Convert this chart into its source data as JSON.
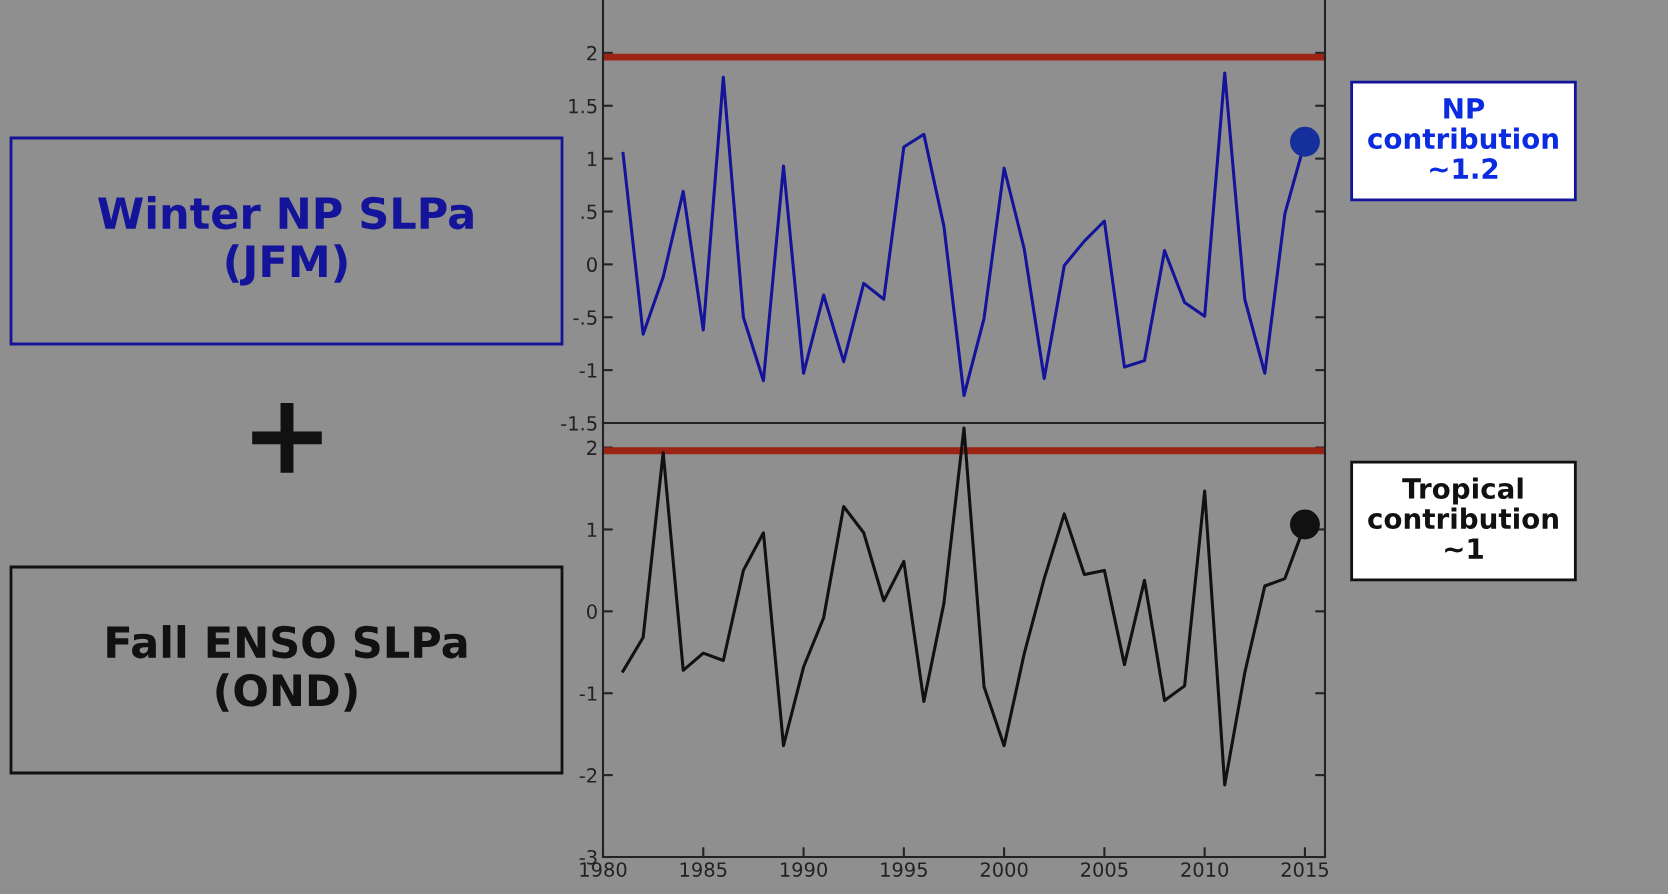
{
  "chart_data": [
    {
      "type": "line",
      "x": [
        1981,
        1982,
        1983,
        1984,
        1985,
        1986,
        1987,
        1988,
        1989,
        1990,
        1991,
        1992,
        1993,
        1994,
        1995,
        1996,
        1997,
        1998,
        1999,
        2000,
        2001,
        2002,
        2003,
        2004,
        2005,
        2006,
        2007,
        2008,
        2009,
        2010,
        2011,
        2012,
        2013,
        2014,
        2015
      ],
      "series": [
        {
          "color": "#14149a",
          "values": [
            1.05,
            -0.66,
            -0.12,
            0.69,
            -0.62,
            1.77,
            -0.5,
            -1.1,
            0.93,
            -1.03,
            -0.29,
            -0.92,
            -0.18,
            -0.33,
            1.11,
            1.23,
            0.36,
            -1.24,
            -0.51,
            0.91,
            0.15,
            -1.08,
            -0.01,
            0.22,
            0.41,
            -0.97,
            -0.91,
            0.13,
            -0.36,
            -0.49,
            1.81,
            -0.33,
            -1.03,
            0.48,
            1.16
          ]
        },
        {
          "type": "scatter",
          "color": "#15309a",
          "x": [
            2015
          ],
          "values": [
            1.16
          ],
          "marker": "circle"
        }
      ],
      "xlim": [
        1980,
        2016
      ],
      "ylim": [
        -1.5,
        2.5
      ],
      "yticks": [
        {
          "value": -1.5,
          "label": "-1.5"
        },
        -1,
        {
          "value": -0.5,
          "label": "-.5"
        },
        0,
        {
          "value": 0.5,
          "label": ".5"
        },
        1,
        1.5,
        2
      ],
      "tick_labels": "y",
      "grid": false,
      "legend": false,
      "ref_lines": [
        {
          "axis": "y",
          "value": 1.96,
          "color": "#9b2414"
        }
      ],
      "annotations": [
        "Winter NP SLPa\n(JFM)",
        "NP\ncontribution\n~1.2"
      ]
    },
    {
      "type": "line",
      "x": [
        1981,
        1982,
        1983,
        1984,
        1985,
        1986,
        1987,
        1988,
        1989,
        1990,
        1991,
        1992,
        1993,
        1994,
        1995,
        1996,
        1997,
        1998,
        1999,
        2000,
        2001,
        2002,
        2003,
        2004,
        2005,
        2006,
        2007,
        2008,
        2009,
        2010,
        2011,
        2012,
        2013,
        2014,
        2015
      ],
      "series": [
        {
          "color": "#111111",
          "values": [
            -0.73,
            -0.32,
            1.94,
            -0.72,
            -0.51,
            -0.6,
            0.5,
            0.96,
            -1.64,
            -0.68,
            -0.08,
            1.28,
            0.96,
            0.13,
            0.61,
            -1.1,
            0.1,
            2.24,
            -0.92,
            -1.64,
            -0.52,
            0.4,
            1.19,
            0.45,
            0.5,
            -0.65,
            0.38,
            -1.09,
            -0.91,
            1.47,
            -2.12,
            -0.75,
            0.31,
            0.4,
            1.06
          ]
        },
        {
          "type": "scatter",
          "color": "#111111",
          "x": [
            2015
          ],
          "values": [
            1.06
          ],
          "marker": "circle"
        }
      ],
      "xlim": [
        1980,
        2016
      ],
      "ylim": [
        -3,
        2.3
      ],
      "xticks": [
        1980,
        1985,
        1990,
        1995,
        2000,
        2005,
        2010,
        2015
      ],
      "yticks": [
        -3,
        -2,
        -1,
        0,
        1,
        2
      ],
      "grid": false,
      "legend": false,
      "ref_lines": [
        {
          "axis": "y",
          "value": 1.96,
          "color": "#9b2414"
        }
      ],
      "annotations": [
        "+",
        "Fall ENSO SLPa\n(OND)",
        "Tropical\ncontribution\n~1"
      ]
    }
  ]
}
